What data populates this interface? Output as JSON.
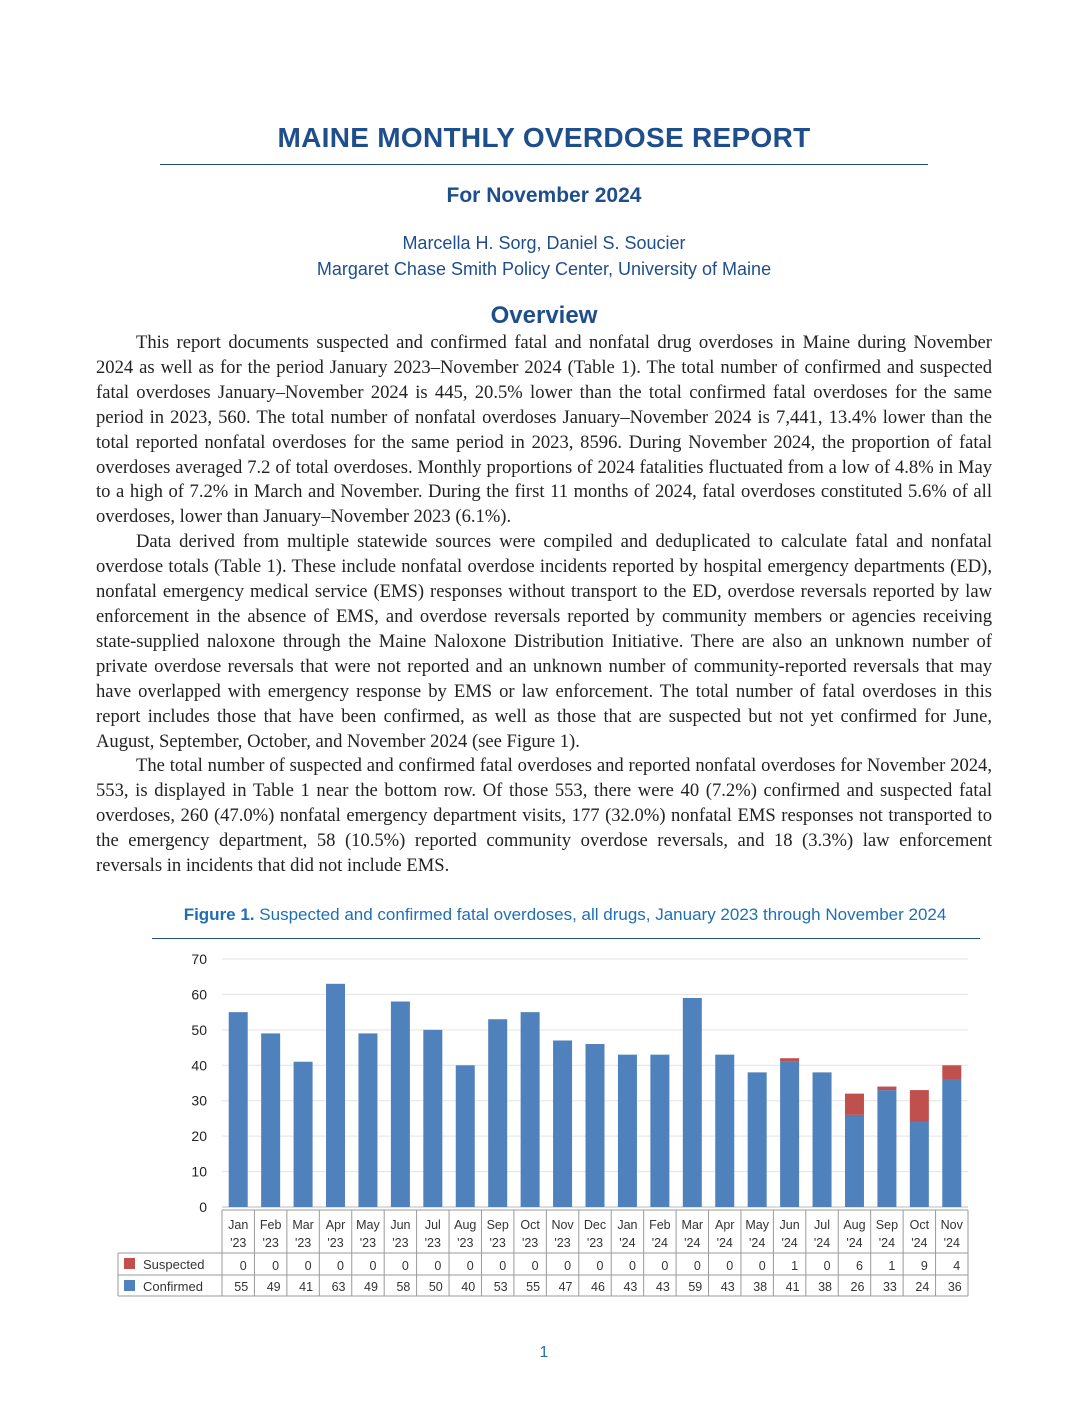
{
  "header": {
    "title": "MAINE MONTHLY OVERDOSE REPORT",
    "subtitle": "For November 2024",
    "authors": "Marcella H. Sorg, Daniel S. Soucier",
    "affiliation": "Margaret Chase Smith Policy Center, University of Maine"
  },
  "overview": {
    "heading": "Overview",
    "paragraphs": [
      "This report documents suspected and confirmed fatal and nonfatal drug overdoses in Maine during November 2024 as well as for the period January 2023–November 2024 (Table 1). The total number of confirmed and suspected fatal overdoses January–November 2024 is 445, 20.5% lower than the total confirmed fatal overdoses for the same period in 2023, 560. The total number of nonfatal overdoses January–November 2024 is 7,441, 13.4% lower than the total reported nonfatal overdoses for the same period in 2023, 8596. During November 2024, the proportion of fatal overdoses averaged 7.2 of total overdoses. Monthly proportions of 2024 fatalities fluctuated from a low of 4.8% in May to a high of 7.2% in March and November. During the first 11 months of 2024, fatal overdoses constituted 5.6% of all overdoses, lower than January–November 2023 (6.1%).",
      "Data derived from multiple statewide sources were compiled and deduplicated to calculate fatal and nonfatal overdose totals (Table 1). These include nonfatal overdose incidents reported by hospital emergency departments (ED), nonfatal emergency medical service (EMS) responses without transport to the ED, overdose reversals reported by law enforcement in the absence of EMS, and overdose reversals reported by community members or agencies receiving state-supplied naloxone through the Maine Naloxone Distribution Initiative. There are also an unknown number of private overdose reversals that were not reported and an unknown number of community-reported reversals that may have overlapped with emergency response by EMS or law enforcement. The total number of fatal overdoses in this report includes those that have been confirmed, as well as those that are suspected but not yet confirmed for June, August, September, October, and November 2024 (see Figure 1).",
      "The total number of suspected and confirmed fatal overdoses and reported nonfatal overdoses for November 2024, 553, is displayed in Table 1 near the bottom row. Of those 553, there were 40 (7.2%) confirmed and suspected fatal overdoses, 260 (47.0%) nonfatal emergency department visits, 177 (32.0%) nonfatal EMS responses not transported to the emergency department, 58 (10.5%) reported community overdose reversals, and 18 (3.3%) law enforcement reversals in incidents that did not include EMS."
    ]
  },
  "figure": {
    "label": "Figure 1.",
    "caption": "Suspected and confirmed fatal overdoses, all drugs, January 2023 through November 2024"
  },
  "chart_data": {
    "type": "bar",
    "stacked": true,
    "categories": [
      [
        "Jan",
        "'23"
      ],
      [
        "Feb",
        "'23"
      ],
      [
        "Mar",
        "'23"
      ],
      [
        "Apr",
        "'23"
      ],
      [
        "May",
        "'23"
      ],
      [
        "Jun",
        "'23"
      ],
      [
        "Jul",
        "'23"
      ],
      [
        "Aug",
        "'23"
      ],
      [
        "Sep",
        "'23"
      ],
      [
        "Oct",
        "'23"
      ],
      [
        "Nov",
        "'23"
      ],
      [
        "Dec",
        "'23"
      ],
      [
        "Jan",
        "'24"
      ],
      [
        "Feb",
        "'24"
      ],
      [
        "Mar",
        "'24"
      ],
      [
        "Apr",
        "'24"
      ],
      [
        "May",
        "'24"
      ],
      [
        "Jun",
        "'24"
      ],
      [
        "Jul",
        "'24"
      ],
      [
        "Aug",
        "'24"
      ],
      [
        "Sep",
        "'24"
      ],
      [
        "Oct",
        "'24"
      ],
      [
        "Nov",
        "'24"
      ]
    ],
    "series": [
      {
        "name": "Suspected",
        "color": "#c0504d",
        "values": [
          0,
          0,
          0,
          0,
          0,
          0,
          0,
          0,
          0,
          0,
          0,
          0,
          0,
          0,
          0,
          0,
          0,
          1,
          0,
          6,
          1,
          9,
          4
        ]
      },
      {
        "name": "Confirmed",
        "color": "#4f81bd",
        "values": [
          55,
          49,
          41,
          63,
          49,
          58,
          50,
          40,
          53,
          55,
          47,
          46,
          43,
          43,
          59,
          43,
          38,
          41,
          38,
          26,
          33,
          24,
          36
        ]
      }
    ],
    "ylim": [
      0,
      70
    ],
    "yticks": [
      0,
      10,
      20,
      30,
      40,
      50,
      60,
      70
    ],
    "grid": true,
    "legend": "data-table"
  },
  "footer": {
    "page_number": "1"
  }
}
